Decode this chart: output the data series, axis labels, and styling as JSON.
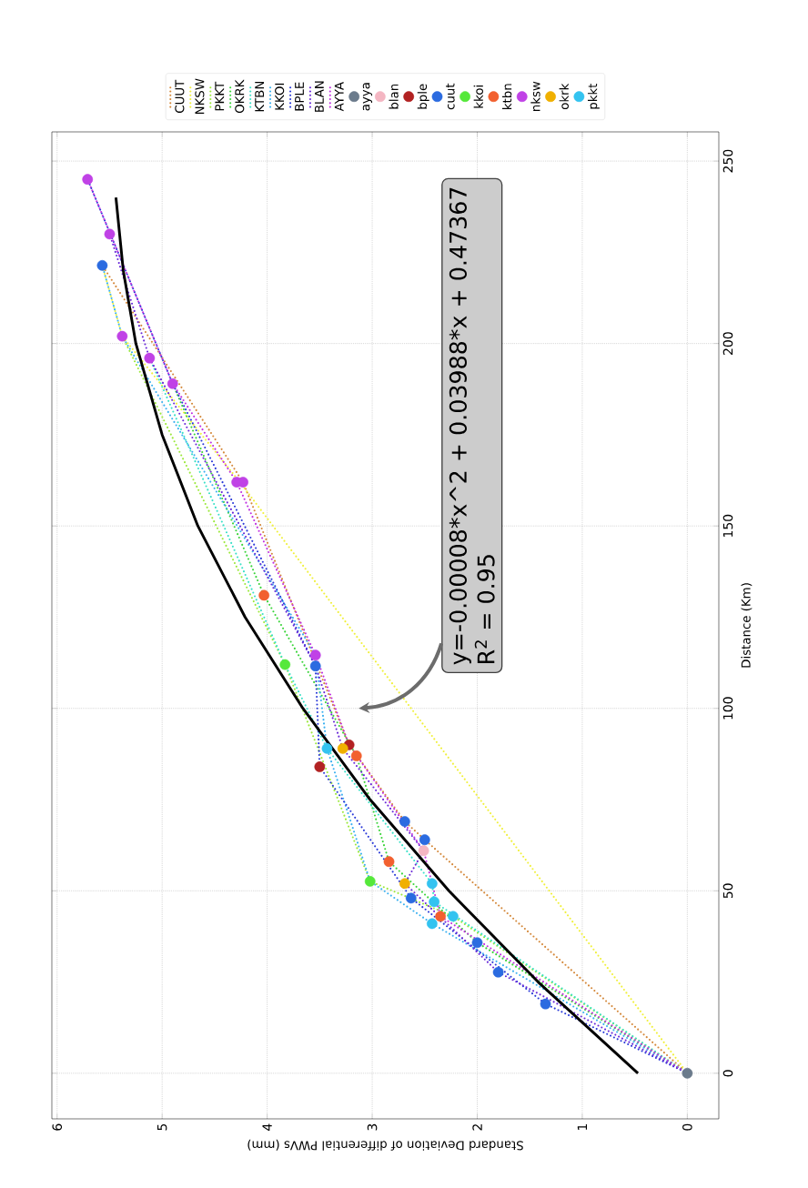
{
  "chart_data": {
    "type": "line",
    "xlabel": "Standard Deviation of differential PWVs (mm)",
    "ylabel": "Distance (Km)",
    "xlim": [
      6.05,
      -0.3
    ],
    "ylim": [
      -12.5,
      258
    ],
    "xticks": [
      0,
      1,
      2,
      3,
      4,
      5,
      6
    ],
    "yticks": [
      0,
      50,
      100,
      150,
      200,
      250
    ],
    "grid": true,
    "legend": "top",
    "annotations": [
      "y=-0.00008*x^2 + 0.03988*x + 0.47367",
      "R$^{2}$ = 0.95"
    ],
    "series": [
      {
        "type": "line",
        "name": "CUUT",
        "color": "#d4883a",
        "line_style": "dotted",
        "marker": "none",
        "values": [
          0,
          64,
          69,
          90,
          162,
          221.4
        ],
        "x": [
          0,
          2.5,
          2.69,
          3.22,
          4.23,
          5.57
        ]
      },
      {
        "type": "line",
        "name": "NKSW",
        "color": "#f0f03a",
        "line_style": "dotted",
        "marker": "none",
        "values": [
          0,
          162,
          202,
          221.4
        ],
        "x": [
          0,
          4.26,
          5.38,
          5.57
        ]
      },
      {
        "type": "line",
        "name": "PKKT",
        "color": "#9be83a",
        "line_style": "dotted",
        "marker": "none",
        "values": [
          0,
          43,
          52.6,
          112,
          202
        ],
        "x": [
          0,
          2.23,
          3.02,
          3.83,
          5.38
        ]
      },
      {
        "type": "line",
        "name": "OKRK",
        "color": "#3ad43a",
        "line_style": "dotted",
        "marker": "none",
        "values": [
          0,
          35.8,
          58,
          87,
          131,
          189
        ],
        "x": [
          0,
          2.0,
          2.84,
          3.15,
          4.03,
          4.9
        ]
      },
      {
        "type": "line",
        "name": "KTBN",
        "color": "#3ae0c8",
        "line_style": "dotted",
        "marker": "none",
        "values": [
          0,
          47,
          52,
          89,
          112,
          196
        ],
        "x": [
          0,
          2.41,
          2.43,
          3.43,
          3.83,
          5.12
        ]
      },
      {
        "type": "line",
        "name": "KKOI",
        "color": "#3ab0f0",
        "line_style": "dotted",
        "marker": "none",
        "values": [
          0,
          41,
          52.6,
          89,
          114.6,
          202,
          221.4
        ],
        "x": [
          0,
          2.43,
          3.02,
          3.43,
          3.54,
          5.38,
          5.57
        ]
      },
      {
        "type": "line",
        "name": "BPLE",
        "color": "#2a3ad8",
        "line_style": "dotted",
        "marker": "none",
        "values": [
          0,
          19,
          48,
          84,
          111.6,
          189,
          245
        ],
        "x": [
          0,
          1.35,
          2.63,
          3.5,
          3.54,
          4.9,
          5.71
        ]
      },
      {
        "type": "line",
        "name": "BLAN",
        "color": "#6a2ad8",
        "line_style": "dotted",
        "marker": "none",
        "values": [
          0,
          27.7,
          52,
          61,
          89,
          111.6,
          196,
          230
        ],
        "x": [
          0,
          1.8,
          2.69,
          2.51,
          3.28,
          3.54,
          5.12,
          5.5
        ]
      },
      {
        "type": "line",
        "name": "AYYA",
        "color": "#c030e0",
        "line_style": "dotted",
        "marker": "none",
        "values": [
          0,
          43,
          61,
          90,
          114.6,
          162,
          189,
          245
        ],
        "x": [
          0,
          2.35,
          2.51,
          3.22,
          3.54,
          4.29,
          4.9,
          5.71
        ]
      },
      {
        "type": "scatter",
        "name": "ayya",
        "color": "#6b7b8c",
        "marker": "circle",
        "values": [
          0
        ],
        "x": [
          0
        ]
      },
      {
        "type": "scatter",
        "name": "blan",
        "color": "#f4b6c2",
        "marker": "circle",
        "values": [
          61
        ],
        "x": [
          2.51
        ]
      },
      {
        "type": "scatter",
        "name": "bple",
        "color": "#b22222",
        "marker": "circle",
        "values": [
          84,
          90
        ],
        "x": [
          3.5,
          3.22
        ]
      },
      {
        "type": "scatter",
        "name": "cuut",
        "color": "#2b6be0",
        "marker": "circle",
        "values": [
          19,
          27.7,
          35.8,
          48,
          64,
          69,
          111.6,
          221.4
        ],
        "x": [
          1.35,
          1.8,
          2.0,
          2.63,
          2.5,
          2.69,
          3.54,
          5.57
        ]
      },
      {
        "type": "scatter",
        "name": "kkoi",
        "color": "#55e83a",
        "marker": "circle",
        "values": [
          52.6,
          112
        ],
        "x": [
          3.02,
          3.83
        ]
      },
      {
        "type": "scatter",
        "name": "ktbn",
        "color": "#f2602f",
        "marker": "circle",
        "values": [
          43,
          58,
          87,
          131
        ],
        "x": [
          2.35,
          2.84,
          3.15,
          4.03
        ]
      },
      {
        "type": "scatter",
        "name": "nksw",
        "color": "#c042e6",
        "marker": "circle",
        "values": [
          114.6,
          162,
          162,
          189,
          196,
          202,
          230,
          245
        ],
        "x": [
          3.54,
          4.29,
          4.23,
          4.9,
          5.12,
          5.38,
          5.5,
          5.71
        ]
      },
      {
        "type": "scatter",
        "name": "okrk",
        "color": "#f0b000",
        "marker": "circle",
        "values": [
          52,
          89
        ],
        "x": [
          2.69,
          3.28
        ]
      },
      {
        "type": "scatter",
        "name": "pkkt",
        "color": "#33c3f0",
        "marker": "circle",
        "values": [
          41,
          43,
          47,
          52,
          89
        ],
        "x": [
          2.43,
          2.23,
          2.41,
          2.43,
          3.43
        ]
      },
      {
        "type": "line",
        "color": "#000000",
        "line_style": "solid",
        "marker": "none",
        "values": [
          0,
          25,
          50,
          75,
          100,
          125,
          150,
          175,
          200,
          220,
          240
        ],
        "x": [
          0.47,
          1.42,
          2.27,
          3.02,
          3.66,
          4.21,
          4.66,
          5.0,
          5.25,
          5.37,
          5.44
        ]
      }
    ]
  }
}
